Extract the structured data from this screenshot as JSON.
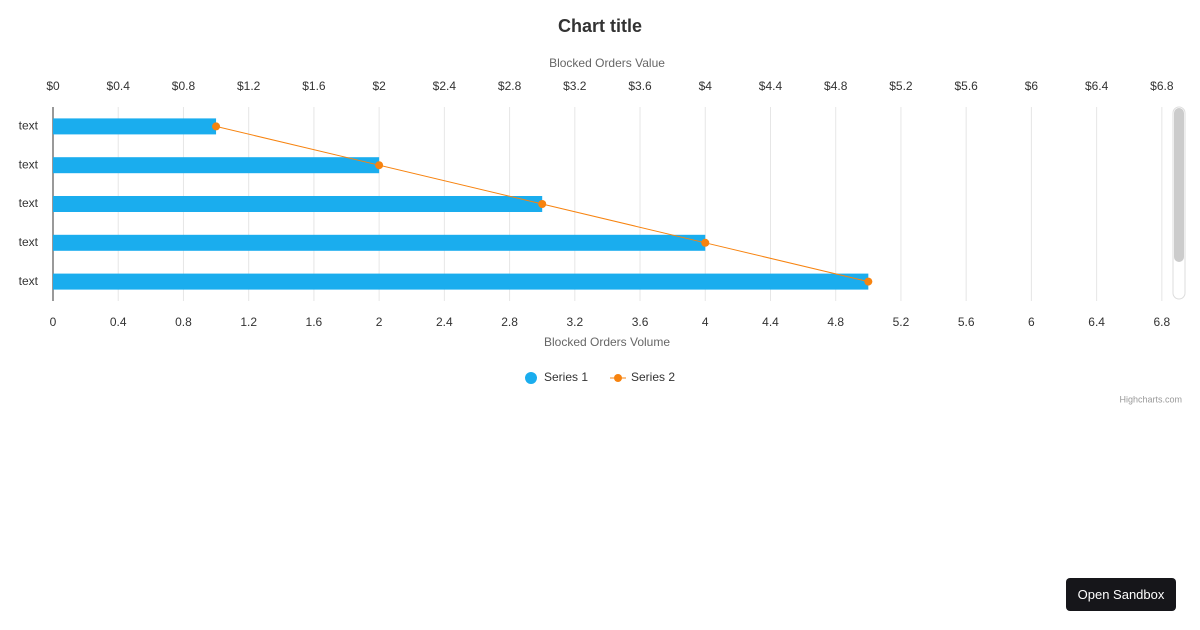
{
  "chart_data": {
    "type": "bar",
    "title": "Chart title",
    "x_axis_title": "Blocked Orders Volume",
    "x2_axis_title": "Blocked Orders Value",
    "categories": [
      "text",
      "text",
      "text",
      "text",
      "text"
    ],
    "series": [
      {
        "name": "Series 1",
        "type": "bar",
        "color": "#1aadee",
        "values": [
          1,
          2,
          3,
          4,
          5
        ]
      },
      {
        "name": "Series 2",
        "type": "line",
        "axis": "x2",
        "color": "#f7830f",
        "values": [
          1,
          2,
          3,
          4,
          5
        ]
      }
    ],
    "xlim": [
      0,
      6.85
    ],
    "xticks": [
      0,
      0.4,
      0.8,
      1.2,
      1.6,
      2,
      2.4,
      2.8,
      3.2,
      3.6,
      4,
      4.4,
      4.8,
      5.2,
      5.6,
      6,
      6.4,
      6.8
    ],
    "x2lim": [
      0,
      6.85
    ],
    "x2ticks": [
      {
        "value": 0,
        "label": "$0"
      },
      {
        "value": 0.4,
        "label": "$0.4"
      },
      {
        "value": 0.8,
        "label": "$0.8"
      },
      {
        "value": 1.2,
        "label": "$1.2"
      },
      {
        "value": 1.6,
        "label": "$1.6"
      },
      {
        "value": 2,
        "label": "$2"
      },
      {
        "value": 2.4,
        "label": "$2.4"
      },
      {
        "value": 2.8,
        "label": "$2.8"
      },
      {
        "value": 3.2,
        "label": "$3.2"
      },
      {
        "value": 3.6,
        "label": "$3.6"
      },
      {
        "value": 4,
        "label": "$4"
      },
      {
        "value": 4.4,
        "label": "$4.4"
      },
      {
        "value": 4.8,
        "label": "$4.8"
      },
      {
        "value": 5.2,
        "label": "$5.2"
      },
      {
        "value": 5.6,
        "label": "$5.6"
      },
      {
        "value": 6,
        "label": "$6"
      },
      {
        "value": 6.4,
        "label": "$6.4"
      },
      {
        "value": 6.8,
        "label": "$6.8"
      }
    ],
    "grid": true,
    "legend": "bottom"
  },
  "ui": {
    "credits": "Highcharts.com",
    "button": "Open Sandbox"
  }
}
